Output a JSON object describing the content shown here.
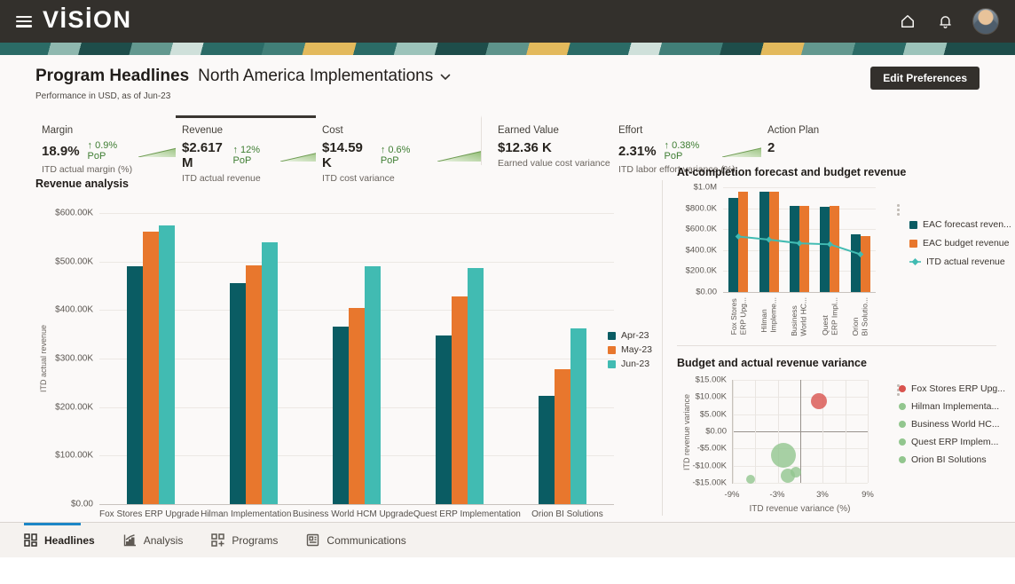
{
  "header": {
    "logo": "VİSİON"
  },
  "page": {
    "title": "Program Headlines",
    "scope": "North America Implementations",
    "subtitle": "Performance in USD, as of Jun-23",
    "edit_button": "Edit Preferences"
  },
  "kpis": [
    {
      "label": "Margin",
      "value": "18.9%",
      "delta": "0.9% PoP",
      "sub": "ITD actual margin (%)",
      "sparkline": true,
      "selected": false
    },
    {
      "label": "Revenue",
      "value": "$2.617 M",
      "delta": "12% PoP",
      "sub": "ITD actual revenue",
      "sparkline": true,
      "selected": true
    },
    {
      "label": "Cost",
      "value": "$14.59 K",
      "delta": "0.6% PoP",
      "sub": "ITD cost variance",
      "sparkline": true,
      "selected": false
    },
    {
      "label": "Earned Value",
      "value": "$12.36 K",
      "delta": null,
      "sub": "Earned value cost variance",
      "sparkline": false,
      "selected": false
    },
    {
      "label": "Effort",
      "value": "2.31%",
      "delta": "0.38% PoP",
      "sub": "ITD labor effort variance (%)",
      "sparkline": true,
      "selected": false
    },
    {
      "label": "Action Plan",
      "value": "2",
      "delta": null,
      "sub": "",
      "sparkline": false,
      "selected": false
    }
  ],
  "colors": {
    "delta_green": "#3e7d32",
    "apr": "#0a5c63",
    "may": "#e8772d",
    "jun": "#41bbb2",
    "scatter_red": "#d9534e",
    "scatter_green": "#92c68e",
    "tab_accent": "#1c86c6"
  },
  "chart_data": [
    {
      "id": "revenue-analysis",
      "type": "bar",
      "title": "Revenue analysis",
      "ylabel": "ITD actual revenue",
      "ylim": [
        0,
        600000
      ],
      "ytick_labels": [
        "$600.00K",
        "$500.00K",
        "$400.00K",
        "$300.00K",
        "$200.00K",
        "$100.00K",
        "$0.00"
      ],
      "categories": [
        "Fox Stores ERP Upgrade",
        "Hilman Implementation",
        "Business World HCM Upgrade",
        "Quest ERP Implementation",
        "Orion BI Solutions"
      ],
      "series": [
        {
          "name": "Apr-23",
          "color": "#0a5c63",
          "values": [
            490000,
            455000,
            365000,
            347000,
            224000
          ]
        },
        {
          "name": "May-23",
          "color": "#e8772d",
          "values": [
            562000,
            493000,
            405000,
            428000,
            278000
          ]
        },
        {
          "name": "Jun-23",
          "color": "#41bbb2",
          "values": [
            574000,
            540000,
            490000,
            487000,
            362000
          ]
        }
      ],
      "legend_position": "right",
      "grid": true
    },
    {
      "id": "eac-forecast-budget",
      "type": "bar",
      "title": "At-completion forecast and budget revenue",
      "ylim": [
        0,
        1000000
      ],
      "ytick_labels": [
        "$1.0M",
        "$800.0K",
        "$600.0K",
        "$400.0K",
        "$200.0K",
        "$0.00"
      ],
      "categories": [
        "Fox Stores\nERP Upg...",
        "Hilman\nImpleme...",
        "Business\nWorld HC...",
        "Quest\nERP Impl...",
        "Orion\nBI Solutio..."
      ],
      "series": [
        {
          "name": "EAC forecast reven...",
          "kind": "bar",
          "color": "#0a5c63",
          "values": [
            900000,
            960000,
            820000,
            815000,
            550000
          ]
        },
        {
          "name": "EAC budget revenue",
          "kind": "bar",
          "color": "#e8772d",
          "values": [
            960000,
            960000,
            825000,
            820000,
            530000
          ]
        },
        {
          "name": "ITD actual revenue",
          "kind": "line",
          "color": "#41bbb2",
          "values": [
            530000,
            500000,
            465000,
            455000,
            360000
          ]
        }
      ],
      "legend_position": "right",
      "grid": true
    },
    {
      "id": "revenue-variance",
      "type": "scatter",
      "title": "Budget and actual revenue variance",
      "xlabel": "ITD revenue variance (%)",
      "ylabel": "ITD revenue variance",
      "xlim": [
        -9,
        9
      ],
      "ylim": [
        -15000,
        15000
      ],
      "xtick_labels": [
        "-9%",
        "-3%",
        "3%",
        "9%"
      ],
      "xtick_values": [
        -9,
        -3,
        3,
        9
      ],
      "ytick_labels": [
        "$15.00K",
        "$10.00K",
        "$5.00K",
        "$0.00",
        "-$5.00K",
        "-$10.00K",
        "-$15.00K"
      ],
      "points": [
        {
          "name": "Fox Stores ERP Upg...",
          "x": 2.5,
          "y": 8800,
          "r": 9,
          "color": "#d9534e"
        },
        {
          "name": "Hilman Implementa...",
          "x": -2.3,
          "y": -7000,
          "r": 14,
          "color": "#92c68e"
        },
        {
          "name": "Business World HC...",
          "x": -1.7,
          "y": -13000,
          "r": 8,
          "color": "#92c68e"
        },
        {
          "name": "Quest ERP Implem...",
          "x": -0.6,
          "y": -12000,
          "r": 6,
          "color": "#92c68e"
        },
        {
          "name": "Orion BI Solutions",
          "x": -6.6,
          "y": -14000,
          "r": 5,
          "color": "#92c68e"
        }
      ],
      "legend_position": "right",
      "grid": true
    }
  ],
  "tabs": [
    {
      "label": "Headlines",
      "active": true
    },
    {
      "label": "Analysis",
      "active": false
    },
    {
      "label": "Programs",
      "active": false
    },
    {
      "label": "Communications",
      "active": false
    }
  ]
}
